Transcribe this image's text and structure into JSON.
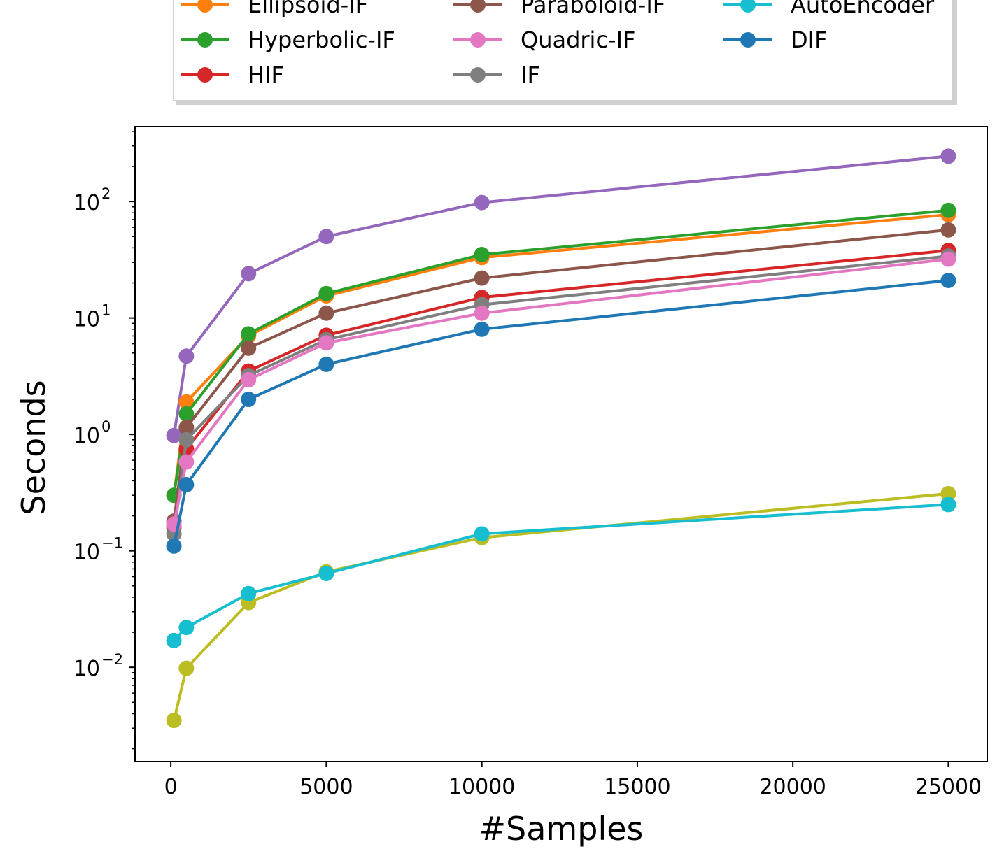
{
  "chart_data": {
    "type": "line",
    "xlabel": "#Samples",
    "ylabel": "Seconds",
    "xlim": [
      -1150,
      26250
    ],
    "ylim": [
      0.00155,
      440
    ],
    "yscale": "log",
    "x_ticks": [
      0,
      5000,
      10000,
      15000,
      20000,
      25000
    ],
    "x_tick_labels": [
      "0",
      "5000",
      "10000",
      "15000",
      "20000",
      "25000"
    ],
    "y_ticks": [
      0.01,
      0.1,
      1,
      10,
      100
    ],
    "y_tick_labels": [
      {
        "base": "10",
        "exp": "−2"
      },
      {
        "base": "10",
        "exp": "−1"
      },
      {
        "base": "10",
        "exp": "0"
      },
      {
        "base": "10",
        "exp": "1"
      },
      {
        "base": "10",
        "exp": "2"
      }
    ],
    "legend_position": "top, above plot",
    "x": [
      100,
      500,
      2500,
      5000,
      10000,
      25000
    ],
    "series": [
      {
        "name": "",
        "color": "#9467bd",
        "values": [
          0.98,
          4.7,
          24,
          50,
          98,
          245
        ]
      },
      {
        "name": "Ellipsoid-IF",
        "color": "#ff7f0e",
        "values": [
          0.3,
          1.9,
          7.0,
          15.5,
          33,
          77
        ]
      },
      {
        "name": "Hyperbolic-IF",
        "color": "#2ca02c",
        "values": [
          0.3,
          1.5,
          7.3,
          16.2,
          35,
          84
        ]
      },
      {
        "name": "Paraboloid-IF",
        "color": "#8c564b",
        "values": [
          0.18,
          1.15,
          5.5,
          11,
          22,
          57
        ]
      },
      {
        "name": "HIF",
        "color": "#d62728",
        "values": [
          0.16,
          0.75,
          3.5,
          7.1,
          15,
          38
        ]
      },
      {
        "name": "IF",
        "color": "#7f7f7f",
        "values": [
          0.14,
          0.9,
          3.2,
          6.5,
          13,
          34
        ]
      },
      {
        "name": "Quadric-IF",
        "color": "#e377c2",
        "values": [
          0.17,
          0.58,
          2.95,
          6.1,
          11,
          32
        ]
      },
      {
        "name": "DIF",
        "color": "#1f77b4",
        "values": [
          0.11,
          0.37,
          2.0,
          4.0,
          8.0,
          21
        ]
      },
      {
        "name": "",
        "color": "#bcbd22",
        "values": [
          0.0035,
          0.0098,
          0.036,
          0.066,
          0.13,
          0.31
        ]
      },
      {
        "name": "AutoEncoder",
        "color": "#17becf",
        "values": [
          0.017,
          0.022,
          0.043,
          0.064,
          0.14,
          0.25
        ]
      }
    ],
    "legend": [
      {
        "name": "Ellipsoid-IF",
        "color": "#ff7f0e"
      },
      {
        "name": "Paraboloid-IF",
        "color": "#8c564b"
      },
      {
        "name": "AutoEncoder",
        "color": "#17becf"
      },
      {
        "name": "Hyperbolic-IF",
        "color": "#2ca02c"
      },
      {
        "name": "Quadric-IF",
        "color": "#e377c2"
      },
      {
        "name": "DIF",
        "color": "#1f77b4"
      },
      {
        "name": "HIF",
        "color": "#d62728"
      },
      {
        "name": "IF",
        "color": "#7f7f7f"
      }
    ]
  }
}
